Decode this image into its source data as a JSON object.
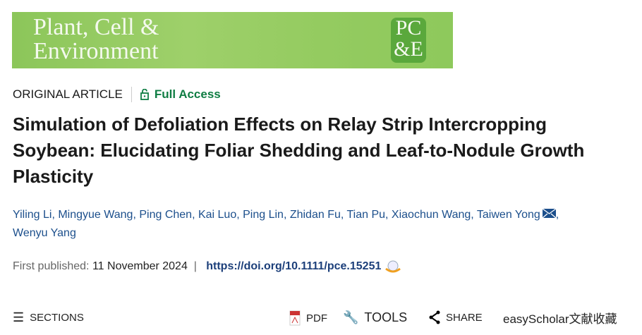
{
  "journal": {
    "title_line1": "Plant, Cell &",
    "title_line2": "Environment",
    "logo_text": "PC&E"
  },
  "article_type": "ORIGINAL ARTICLE",
  "access": "Full Access",
  "title": "Simulation of Defoliation Effects on Relay Strip Intercropping Soybean: Elucidating Foliar Shedding and Leaf-to-Nodule Growth Plasticity",
  "authors": [
    "Yiling Li",
    "Mingyue Wang",
    "Ping Chen",
    "Kai Luo",
    "Ping Lin",
    "Zhidan Fu",
    "Tian Pu",
    "Xiaochun Wang",
    "Taiwen Yong",
    "Wenyu Yang"
  ],
  "published_label": "First published:",
  "published_date": "11 November 2024",
  "doi": "https://doi.org/10.1111/pce.15251",
  "toolbar": {
    "sections": "SECTIONS",
    "pdf": "PDF",
    "tools": "TOOLS",
    "share": "SHARE",
    "easyscholar": "easyScholar文献收藏"
  }
}
